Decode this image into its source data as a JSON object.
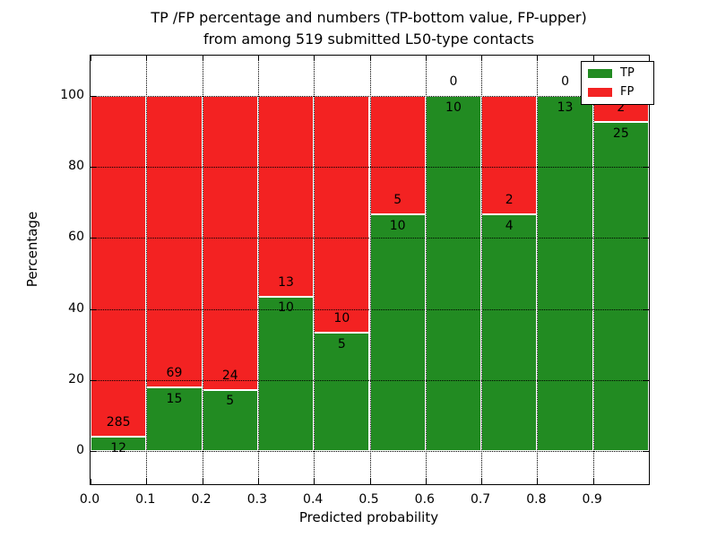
{
  "title": {
    "line1": "TP /FP percentage and numbers (TP-bottom value, FP-upper)",
    "line2": "from among 519 submitted L50-type contacts"
  },
  "axes": {
    "xlabel": "Predicted probability",
    "ylabel": "Percentage",
    "x_tick_labels": [
      "0.0",
      "0.1",
      "0.2",
      "0.3",
      "0.4",
      "0.5",
      "0.6",
      "0.7",
      "0.8",
      "0.9"
    ],
    "y_tick_labels": [
      "0",
      "20",
      "40",
      "60",
      "80",
      "100"
    ],
    "y_ticks": [
      0,
      20,
      40,
      60,
      80,
      100
    ]
  },
  "legend": {
    "items": [
      {
        "label": "TP",
        "color": "#228b22"
      },
      {
        "label": "FP",
        "color": "#f32222"
      }
    ]
  },
  "colors": {
    "tp": "#228b22",
    "fp": "#f32222",
    "text": "#000000",
    "background": "#ffffff"
  },
  "chart_data": {
    "type": "bar",
    "stacked": true,
    "title": "TP /FP percentage and numbers (TP-bottom value, FP-upper) from among 519 submitted L50-type contacts",
    "xlabel": "Predicted probability",
    "ylabel": "Percentage",
    "x_bin_edges": [
      0.0,
      0.1,
      0.2,
      0.3,
      0.4,
      0.5,
      0.6,
      0.7,
      0.8,
      0.9,
      1.0
    ],
    "x_tick_labels": [
      "0.0",
      "0.1",
      "0.2",
      "0.3",
      "0.4",
      "0.5",
      "0.6",
      "0.7",
      "0.8",
      "0.9"
    ],
    "y_ticks": [
      0,
      20,
      40,
      60,
      80,
      100
    ],
    "ylim_shown": [
      0,
      100
    ],
    "grid": true,
    "legend_position": "upper right",
    "total_contacts": 519,
    "series": [
      {
        "name": "TP",
        "color": "#228b22",
        "counts": [
          12,
          15,
          5,
          10,
          5,
          10,
          10,
          4,
          13,
          25
        ],
        "pct": [
          4.0,
          17.9,
          17.2,
          43.5,
          33.3,
          66.7,
          100.0,
          66.7,
          100.0,
          92.6
        ]
      },
      {
        "name": "FP",
        "color": "#f32222",
        "counts": [
          285,
          69,
          24,
          13,
          10,
          5,
          0,
          2,
          0,
          2
        ],
        "pct": [
          96.0,
          82.1,
          82.8,
          56.5,
          66.7,
          33.3,
          0.0,
          33.3,
          0.0,
          7.4
        ]
      }
    ]
  }
}
